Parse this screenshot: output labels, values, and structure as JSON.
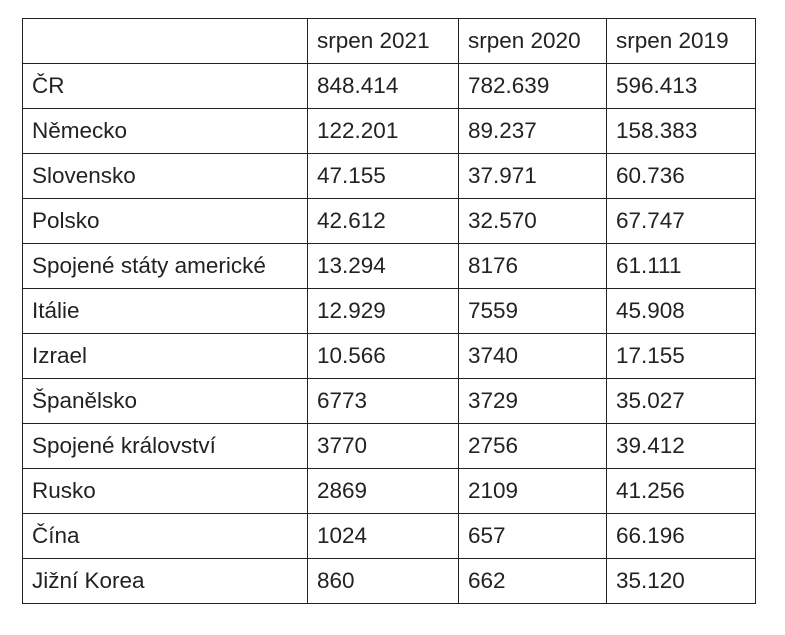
{
  "table": {
    "header": [
      "srpen 2021",
      "srpen 2020",
      "srpen 2019"
    ],
    "rows": [
      [
        "ČR",
        "848.414",
        "782.639",
        "596.413"
      ],
      [
        "Německo",
        "122.201",
        "89.237",
        "158.383"
      ],
      [
        "Slovensko",
        "47.155",
        "37.971",
        "60.736"
      ],
      [
        "Polsko",
        "42.612",
        "32.570",
        "67.747"
      ],
      [
        "Spojené státy americké",
        "13.294",
        "8176",
        "61.111"
      ],
      [
        "Itálie",
        "12.929",
        "7559",
        "45.908"
      ],
      [
        "Izrael",
        "10.566",
        "3740",
        "17.155"
      ],
      [
        "Španělsko",
        "6773",
        "3729",
        "35.027"
      ],
      [
        "Spojené království",
        "3770",
        "2756",
        "39.412"
      ],
      [
        "Rusko",
        "2869",
        "2109",
        "41.256"
      ],
      [
        "Čína",
        "1024",
        "657",
        "66.196"
      ],
      [
        "Jižní Korea",
        "860",
        "662",
        "35.120"
      ]
    ]
  }
}
